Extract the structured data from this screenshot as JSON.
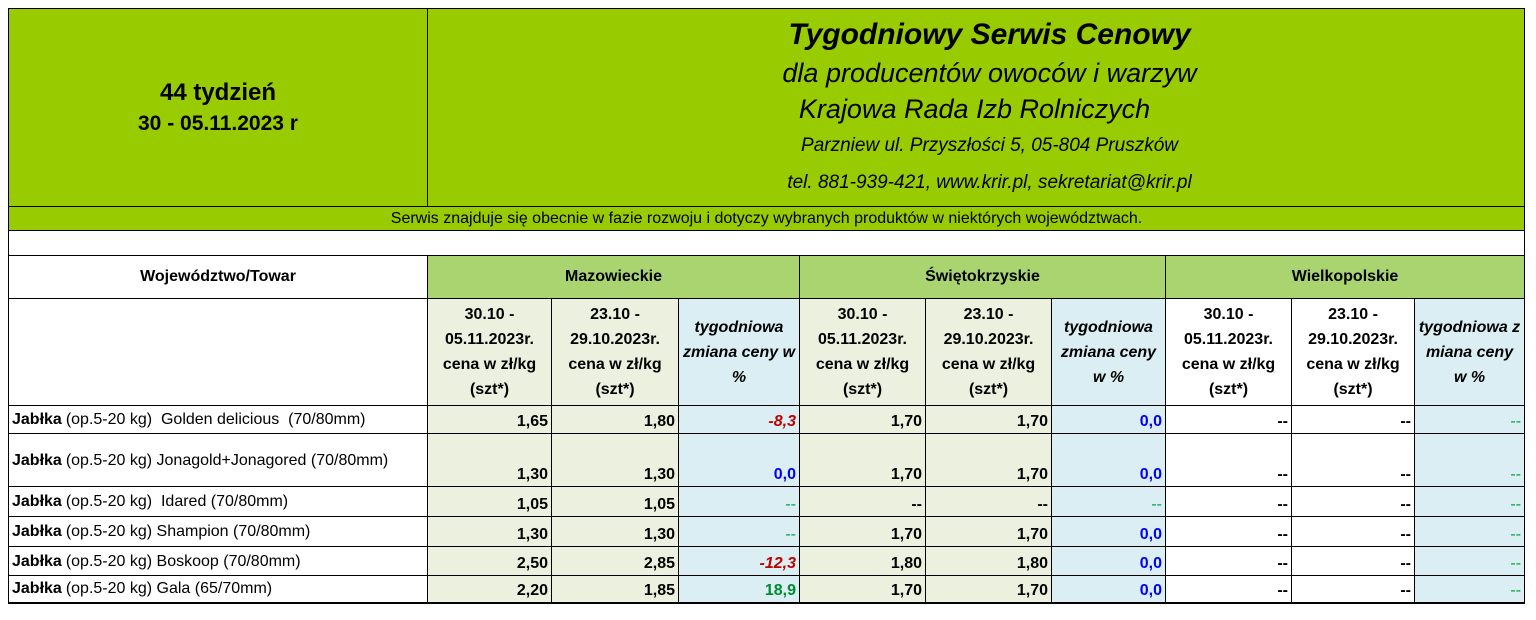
{
  "header": {
    "week": "44 tydzień",
    "dates": "30 - 05.11.2023 r",
    "title": "Tygodniowy Serwis Cenowy",
    "subtitle": "dla producentów owoców i warzyw",
    "organization": "Krajowa Rada Izb Rolniczych",
    "address": "Parzniew ul. Przyszłości 5, 05-804 Pruszków",
    "contact": "tel. 881-939-421, www.krir.pl, sekretariat@krir.pl"
  },
  "notice": "Serwis znajduje się obecnie w  fazie rozwoju i dotyczy wybranych produktów w niektórych województwach.",
  "table": {
    "corner": "Województwo/Towar",
    "regions": [
      "Mazowieckie",
      "Świętokrzyskie",
      "Wielkopolskie"
    ],
    "columns": [
      "30.10 - 05.11.2023r. cena w zł/kg (szt*)",
      "23.10 - 29.10.2023r. cena w zł/kg (szt*)",
      "tygodniowa zmiana ceny w %",
      "30.10 - 05.11.2023r. cena w zł/kg (szt*)",
      "23.10 - 29.10.2023r. cena w zł/kg (szt*)",
      "tygodniowa zmiana ceny w %",
      "30.10 - 05.11.2023r. cena w zł/kg (szt*)",
      "23.10 - 29.10.2023r. cena w zł/kg (szt*)",
      "tygodniowa zmiana ceny w %"
    ],
    "rows": [
      {
        "product": "Jabłka",
        "description": "(op.5-20 kg)  Golden delicious  (70/80mm)",
        "values": [
          "1,65",
          "1,80",
          "-8,3",
          "1,70",
          "1,70",
          "0,0",
          "--",
          "--",
          "--"
        ]
      },
      {
        "product": "Jabłka",
        "description": "(op.5-20 kg) Jonagold+Jonagored (70/80mm)",
        "values": [
          "1,30",
          "1,30",
          "0,0",
          "1,70",
          "1,70",
          "0,0",
          "--",
          "--",
          "--"
        ]
      },
      {
        "product": "Jabłka",
        "description": "(op.5-20 kg)  Idared (70/80mm)",
        "values": [
          "1,05",
          "1,05",
          "--",
          "--",
          "--",
          "--",
          "--",
          "--",
          "--"
        ]
      },
      {
        "product": "Jabłka",
        "description": "(op.5-20 kg) Shampion (70/80mm)",
        "values": [
          "1,30",
          "1,30",
          "--",
          "1,70",
          "1,70",
          "0,0",
          "--",
          "--",
          "--"
        ]
      },
      {
        "product": "Jabłka",
        "description": "(op.5-20 kg) Boskoop (70/80mm)",
        "values": [
          "2,50",
          "2,85",
          "-12,3",
          "1,80",
          "1,80",
          "0,0",
          "--",
          "--",
          "--"
        ]
      },
      {
        "product": "Jabłka",
        "description": "(op.5-20 kg) Gala (65/70mm)",
        "values": [
          "2,20",
          "1,85",
          "18,9",
          "1,70",
          "1,70",
          "0,0",
          "--",
          "--",
          "--"
        ]
      }
    ]
  }
}
